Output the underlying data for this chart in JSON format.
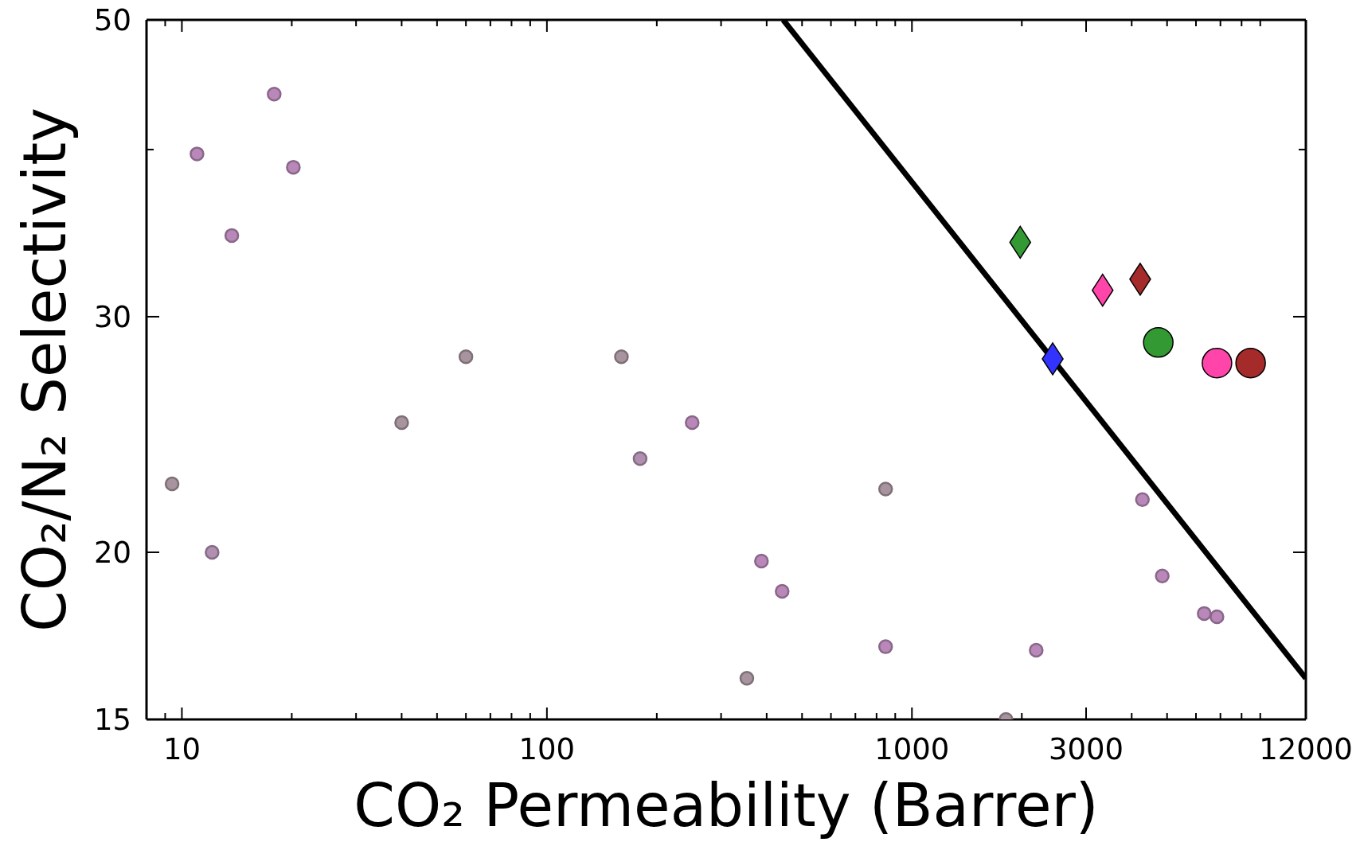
{
  "chart_data": {
    "type": "scatter",
    "xlabel": "CO₂ Permeability (Barrer)",
    "ylabel": "CO₂/N₂ Selectivity",
    "log": "xy",
    "xlim": [
      8,
      12000
    ],
    "ylim": [
      15,
      50
    ],
    "xticks": [
      {
        "value": 9,
        "label": null
      },
      10,
      {
        "value": 20,
        "label": null
      },
      {
        "value": 30,
        "label": null
      },
      {
        "value": 40,
        "label": null
      },
      {
        "value": 50,
        "label": null
      },
      {
        "value": 60,
        "label": null
      },
      {
        "value": 70,
        "label": null
      },
      {
        "value": 80,
        "label": null
      },
      {
        "value": 90,
        "label": null
      },
      100,
      {
        "value": 200,
        "label": null
      },
      {
        "value": 300,
        "label": null
      },
      {
        "value": 400,
        "label": null
      },
      {
        "value": 500,
        "label": null
      },
      {
        "value": 600,
        "label": null
      },
      {
        "value": 700,
        "label": null
      },
      {
        "value": 800,
        "label": null
      },
      {
        "value": 900,
        "label": null
      },
      1000,
      {
        "value": 2000,
        "label": null
      },
      3000,
      {
        "value": 4000,
        "label": null
      },
      {
        "value": 5000,
        "label": null
      },
      {
        "value": 6000,
        "label": null
      },
      {
        "value": 7000,
        "label": null
      },
      {
        "value": 8000,
        "label": null
      },
      {
        "value": 9000,
        "label": null
      },
      12000
    ],
    "yticks": [
      15,
      20,
      30,
      {
        "value": 40,
        "label": null
      },
      50
    ],
    "series": [
      {
        "type": "scatter",
        "marker": "circle",
        "x": [
          9.4,
          11.0,
          12.1,
          13.7,
          17.9,
          20.2,
          40,
          60,
          160,
          180,
          250,
          353,
          387,
          441,
          847,
          847,
          1810,
          2190,
          4280,
          4850,
          6320,
          6850
        ],
        "values": [
          22.5,
          39.7,
          20.0,
          34.5,
          44.0,
          38.8,
          25.0,
          28.0,
          28.0,
          23.5,
          25.0,
          16.1,
          19.7,
          18.7,
          22.3,
          17.0,
          15.0,
          16.9,
          21.9,
          19.2,
          18.0,
          17.9
        ],
        "colors": [
          "#a8949e",
          "#b888b8",
          "#b08fb0",
          "#b888b8",
          "#b888b8",
          "#b888b8",
          "#a8949e",
          "#a8949e",
          "#a8949e",
          "#b08fb0",
          "#b888b8",
          "#a8949e",
          "#b888b8",
          "#b888b8",
          "#a8949e",
          "#b888b8",
          "#a8949e",
          "#b888b8",
          "#b888b8",
          "#b888b8",
          "#b888b8",
          "#b888b8"
        ]
      },
      {
        "type": "scatter",
        "marker": "diamond",
        "x": [
          1980,
          2430,
          3330,
          4220
        ],
        "values": [
          34.1,
          27.9,
          31.4,
          32.0
        ],
        "colors": [
          "#339933",
          "#3333ff",
          "#ff44aa",
          "#a52a2a"
        ]
      },
      {
        "type": "scatter",
        "marker": "circle",
        "x": [
          4730,
          6850,
          8470
        ],
        "values": [
          28.7,
          27.7,
          27.7
        ],
        "colors": [
          "#339933",
          "#ff44aa",
          "#a52a2a"
        ]
      },
      {
        "type": "line",
        "color": "#000000",
        "marker": "none",
        "line_style": "solid",
        "x": [
          444,
          12000
        ],
        "values": [
          50,
          16.1
        ]
      }
    ]
  }
}
